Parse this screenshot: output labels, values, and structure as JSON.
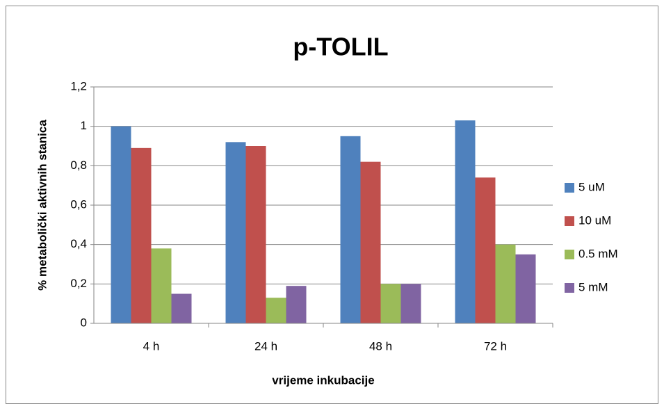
{
  "chart_data": {
    "type": "bar",
    "title": "p-TOLIL",
    "x_label": "vrijeme inkubacije",
    "y_label": "% metabolički aktivnih stanica",
    "categories": [
      "4 h",
      "24 h",
      "48 h",
      "72 h"
    ],
    "series": [
      {
        "name": "5 uM",
        "color": "#4f81bd",
        "values": [
          1.0,
          0.92,
          0.95,
          1.03
        ]
      },
      {
        "name": "10 uM",
        "color": "#c0504d",
        "values": [
          0.89,
          0.9,
          0.82,
          0.74
        ]
      },
      {
        "name": "0.5 mM",
        "color": "#9bbb59",
        "values": [
          0.38,
          0.13,
          0.2,
          0.4
        ]
      },
      {
        "name": "5 mM",
        "color": "#8064a2",
        "values": [
          0.15,
          0.19,
          0.2,
          0.35
        ]
      }
    ],
    "ylim": [
      0,
      1.2
    ],
    "yticks": [
      0,
      {
        "value": 0.2,
        "label": "0,2"
      },
      {
        "value": 0.4,
        "label": "0,4"
      },
      {
        "value": 0.6,
        "label": "0,6"
      },
      {
        "value": 0.8,
        "label": "0,8"
      },
      1,
      {
        "value": 1.2,
        "label": "1,2"
      }
    ],
    "grid": true,
    "legend": "right"
  }
}
